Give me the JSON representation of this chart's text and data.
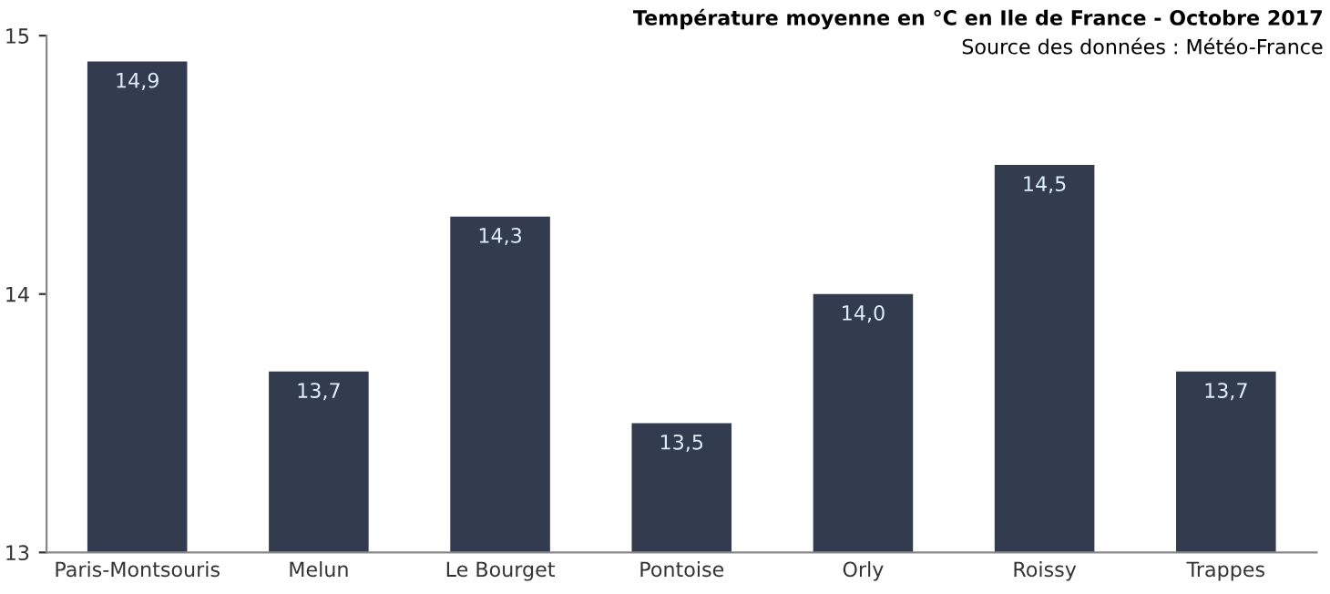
{
  "chart_data": {
    "type": "bar",
    "title": "Température moyenne en °C en Ile de France - Octobre 2017",
    "subtitle": "Source des données : Météo-France",
    "categories": [
      "Paris-Montsouris",
      "Melun",
      "Le Bourget",
      "Pontoise",
      "Orly",
      "Roissy",
      "Trappes"
    ],
    "values": [
      14.9,
      13.7,
      14.3,
      13.5,
      14.0,
      14.5,
      13.7
    ],
    "value_labels": [
      "14,9",
      "13,7",
      "14,3",
      "13,5",
      "14,0",
      "14,5",
      "13,7"
    ],
    "color": "#323c4e",
    "ylim": [
      13,
      15
    ],
    "yticks": [
      13,
      14,
      15
    ],
    "grid": false,
    "legend": false
  }
}
